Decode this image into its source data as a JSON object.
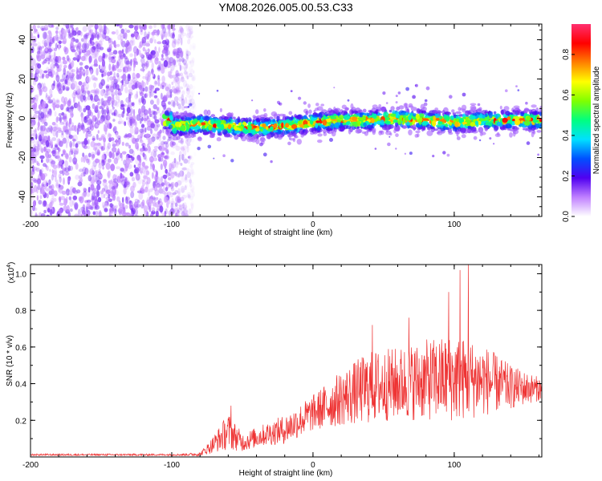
{
  "chart_data": [
    {
      "type": "heatmap",
      "title": "YM08.2026.005.00.53.C33",
      "xlabel": "Height of straight line (km)",
      "ylabel": "Frequency (Hz)",
      "xlim": [
        -200,
        162
      ],
      "ylim": [
        -50,
        48
      ],
      "x_ticks": [
        -200,
        -100,
        0,
        100
      ],
      "y_ticks": [
        -40,
        -20,
        0,
        20,
        40
      ],
      "noise_region_x": [
        -200,
        -83
      ],
      "signal_start_x": -105,
      "ridge_frequency": [
        {
          "x": -100,
          "y": -4
        },
        {
          "x": -80,
          "y": -3
        },
        {
          "x": -60,
          "y": -4
        },
        {
          "x": -40,
          "y": -5
        },
        {
          "x": -20,
          "y": -4
        },
        {
          "x": 0,
          "y": -2
        },
        {
          "x": 20,
          "y": -1
        },
        {
          "x": 40,
          "y": -1
        },
        {
          "x": 60,
          "y": 0
        },
        {
          "x": 80,
          "y": -1
        },
        {
          "x": 100,
          "y": -2
        },
        {
          "x": 120,
          "y": -1
        },
        {
          "x": 140,
          "y": -1
        },
        {
          "x": 160,
          "y": -1
        }
      ],
      "colorbar": {
        "label": "Normalized spectral amplitude",
        "range": [
          0,
          0.95
        ],
        "ticks": [
          0.0,
          0.2,
          0.4,
          0.6,
          0.8
        ],
        "tick_labels": [
          "0.0",
          "0.2",
          "0.4",
          "0.6",
          "0.8"
        ],
        "colors": [
          "#ffffff",
          "#c080ff",
          "#5000f0",
          "#0050ff",
          "#00e0ff",
          "#00ff80",
          "#80ff00",
          "#ffff00",
          "#ff8000",
          "#ff0000",
          "#ff3070"
        ]
      }
    },
    {
      "type": "line",
      "xlabel": "Height of straight line (km)",
      "ylabel": "SNR (10 * v/v)",
      "y_scale_note_base": "(x10",
      "y_scale_note_exp": "4",
      "y_scale_note_close": ")",
      "xlim": [
        -200,
        162
      ],
      "ylim": [
        0,
        1.05
      ],
      "x_ticks": [
        -200,
        -100,
        0,
        100
      ],
      "y_ticks": [
        0.2,
        0.4,
        0.6,
        0.8,
        1.0
      ],
      "series": [
        {
          "name": "SNR",
          "color": "#ee3333",
          "envelope": [
            {
              "x": -200,
              "mean": 0.012,
              "spread": 0.005
            },
            {
              "x": -150,
              "mean": 0.012,
              "spread": 0.005
            },
            {
              "x": -95,
              "mean": 0.012,
              "spread": 0.005
            },
            {
              "x": -80,
              "mean": 0.015,
              "spread": 0.01
            },
            {
              "x": -72,
              "mean": 0.06,
              "spread": 0.04
            },
            {
              "x": -60,
              "mean": 0.14,
              "spread": 0.1
            },
            {
              "x": -50,
              "mean": 0.08,
              "spread": 0.05
            },
            {
              "x": -35,
              "mean": 0.12,
              "spread": 0.06
            },
            {
              "x": -20,
              "mean": 0.15,
              "spread": 0.08
            },
            {
              "x": 0,
              "mean": 0.24,
              "spread": 0.1
            },
            {
              "x": 20,
              "mean": 0.32,
              "spread": 0.15
            },
            {
              "x": 40,
              "mean": 0.38,
              "spread": 0.2
            },
            {
              "x": 60,
              "mean": 0.4,
              "spread": 0.2
            },
            {
              "x": 80,
              "mean": 0.42,
              "spread": 0.22
            },
            {
              "x": 100,
              "mean": 0.43,
              "spread": 0.24
            },
            {
              "x": 120,
              "mean": 0.42,
              "spread": 0.2
            },
            {
              "x": 140,
              "mean": 0.38,
              "spread": 0.12
            },
            {
              "x": 162,
              "mean": 0.37,
              "spread": 0.06
            }
          ],
          "peaks": [
            {
              "x": -58,
              "y": 0.28
            },
            {
              "x": 104,
              "y": 1.02
            },
            {
              "x": 110,
              "y": 1.05
            },
            {
              "x": 96,
              "y": 0.9
            },
            {
              "x": 42,
              "y": 0.72
            },
            {
              "x": 68,
              "y": 0.76
            }
          ]
        }
      ]
    }
  ]
}
